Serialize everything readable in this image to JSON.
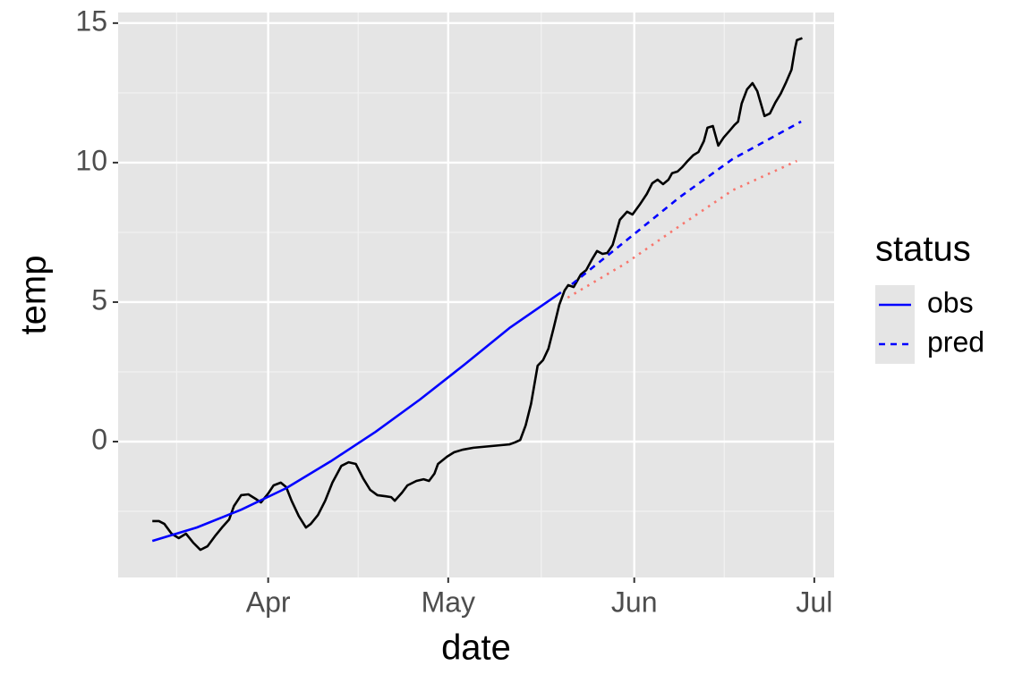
{
  "chart_data": {
    "type": "line",
    "x_label": "date",
    "y_label": "temp",
    "legend_title": "status",
    "legend_position": "right",
    "xlim": [
      66,
      185.3
    ],
    "ylim": [
      -4.87,
      15.38
    ],
    "xticks": [
      {
        "value": 91,
        "label": "Apr"
      },
      {
        "value": 121,
        "label": "May"
      },
      {
        "value": 152,
        "label": "Jun"
      },
      {
        "value": 182,
        "label": "Jul"
      }
    ],
    "xminor": [
      75.75,
      106,
      136.5,
      167
    ],
    "yticks": [
      0,
      5,
      10,
      15
    ],
    "yminor": [
      -2.5,
      2.5,
      7.5,
      12.5
    ],
    "grid": true,
    "series": [
      {
        "color": "#000000",
        "linetype": "solid",
        "x": [
          71.7,
          72.8,
          73.7,
          74.9,
          76.1,
          77.3,
          78.5,
          79.7,
          80.9,
          82.1,
          83.3,
          84.5,
          85.3,
          86.5,
          87.7,
          88.9,
          89.8,
          91,
          91.9,
          93.1,
          94.0,
          94.9,
          96.1,
          97.3,
          98.1,
          99.3,
          100.5,
          101.7,
          103.2,
          104.4,
          105.6,
          106.8,
          108.0,
          109.2,
          110.6,
          111.5,
          112.1,
          113.3,
          114.2,
          115.7,
          116.9,
          117.8,
          118.7,
          119.3,
          120.8,
          122.0,
          123.4,
          125.2,
          128.2,
          131.2,
          132.1,
          133.0,
          133.9,
          134.8,
          135.9,
          136.8,
          137.7,
          138.6,
          139.5,
          140.4,
          141.0,
          141.9,
          143.1,
          144.0,
          144.9,
          145.8,
          146.7,
          147.5,
          148.4,
          149.6,
          150.8,
          151.7,
          152.9,
          154.1,
          155.0,
          155.9,
          156.8,
          157.7,
          158.3,
          159.2,
          160.0,
          160.9,
          161.8,
          162.7,
          163.6,
          164.2,
          165.1,
          166.0,
          166.9,
          167.8,
          168.7,
          169.3,
          169.9,
          170.8,
          171.7,
          172.5,
          173.7,
          174.6,
          175.5,
          176.4,
          177.3,
          178.2,
          178.8,
          179.1,
          180.0
        ],
        "values": [
          -2.85,
          -2.85,
          -2.95,
          -3.3,
          -3.46,
          -3.3,
          -3.62,
          -3.88,
          -3.75,
          -3.4,
          -3.08,
          -2.79,
          -2.31,
          -1.92,
          -1.89,
          -2.05,
          -2.18,
          -1.86,
          -1.57,
          -1.47,
          -1.63,
          -2.12,
          -2.67,
          -3.08,
          -2.95,
          -2.63,
          -2.12,
          -1.47,
          -0.87,
          -0.74,
          -0.8,
          -1.31,
          -1.73,
          -1.92,
          -1.96,
          -1.99,
          -2.12,
          -1.83,
          -1.57,
          -1.41,
          -1.35,
          -1.41,
          -1.15,
          -0.8,
          -0.54,
          -0.38,
          -0.29,
          -0.22,
          -0.16,
          -0.1,
          -0.03,
          0.06,
          0.58,
          1.35,
          2.72,
          2.92,
          3.33,
          4.1,
          4.9,
          5.42,
          5.61,
          5.54,
          5.99,
          6.15,
          6.51,
          6.83,
          6.73,
          6.76,
          7.05,
          7.95,
          8.24,
          8.14,
          8.49,
          8.88,
          9.26,
          9.39,
          9.23,
          9.39,
          9.62,
          9.68,
          9.84,
          10.06,
          10.26,
          10.38,
          10.77,
          11.25,
          11.31,
          10.61,
          10.9,
          11.12,
          11.35,
          11.47,
          12.12,
          12.63,
          12.85,
          12.56,
          11.67,
          11.76,
          12.15,
          12.47,
          12.88,
          13.33,
          14.1,
          14.39,
          14.46
        ]
      },
      {
        "name": "obs",
        "color": "#0000ff",
        "linetype": "solid",
        "x": [
          71.7,
          79.1,
          86.5,
          94.0,
          101.4,
          108.9,
          116.3,
          123.7,
          131.2,
          139.8
        ],
        "values": [
          -3.56,
          -3.08,
          -2.44,
          -1.67,
          -0.71,
          0.35,
          1.51,
          2.76,
          4.07,
          5.35
        ]
      },
      {
        "name": "pred",
        "color": "#0000ff",
        "linetype": "dashed",
        "x": [
          141.6,
          150.5,
          159.5,
          168.4,
          179.8
        ],
        "values": [
          5.64,
          7.18,
          8.75,
          10.13,
          11.47
        ]
      },
      {
        "color": "#f8766d",
        "linetype": "dotted",
        "x": [
          140.9,
          150.5,
          159.5,
          168.4,
          179.1
        ],
        "values": [
          5.16,
          6.38,
          7.72,
          9.01,
          10.06
        ]
      }
    ]
  }
}
